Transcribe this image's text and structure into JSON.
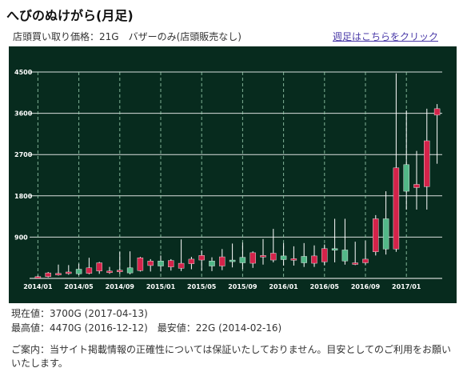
{
  "page": {
    "title": "へびのぬけがら(月足)",
    "shop_price": "店頭買い取り価格：21G　バザーのみ(店頭販売なし)",
    "weekly_link": "週足はこちらをクリック"
  },
  "stats": {
    "current": "現在値：3700G (2017-04-13)",
    "high_low": "最高値：4470G (2016-12-12)　最安値：22G (2014-02-16)"
  },
  "notice": "ご案内：当サイト掲載情報の正確性については保証いたしておりません。目安としてのご利用をお願いいたします。",
  "colors": {
    "background": "#072b1e",
    "up": "#d4234a",
    "down": "#52b888",
    "wick": "#ffffff",
    "grid": "#ffffff"
  },
  "chart_data": {
    "type": "candlestick",
    "title": "",
    "ylim": [
      0,
      4500
    ],
    "yticks": [
      900,
      1800,
      2700,
      3600,
      4500
    ],
    "ytick_labels": [
      "900",
      "1800",
      "2700",
      "3600",
      "4500"
    ],
    "xticks": [
      {
        "month": "2014/01",
        "label": "2014/01"
      },
      {
        "month": "2014/05",
        "label": "2014/05"
      },
      {
        "month": "2014/09",
        "label": "2014/09"
      },
      {
        "month": "2015/01",
        "label": "2015/01"
      },
      {
        "month": "2015/05",
        "label": "2015/05"
      },
      {
        "month": "2015/09",
        "label": "2015/09"
      },
      {
        "month": "2016/01",
        "label": "2016/01"
      },
      {
        "month": "2016/05",
        "label": "2016/05"
      },
      {
        "month": "2016/09",
        "label": "2016/09"
      },
      {
        "month": "2017/01",
        "label": "2017/01"
      }
    ],
    "candles": [
      {
        "month": "2014/01",
        "open": 30,
        "close": 40,
        "high": 60,
        "low": 22
      },
      {
        "month": "2014/02",
        "open": 40,
        "close": 120,
        "high": 140,
        "low": 22
      },
      {
        "month": "2014/03",
        "open": 90,
        "close": 110,
        "high": 300,
        "low": 60
      },
      {
        "month": "2014/04",
        "open": 110,
        "close": 140,
        "high": 290,
        "low": 80
      },
      {
        "month": "2014/05",
        "open": 200,
        "close": 100,
        "high": 320,
        "low": 70
      },
      {
        "month": "2014/06",
        "open": 110,
        "close": 230,
        "high": 450,
        "low": 90
      },
      {
        "month": "2014/07",
        "open": 160,
        "close": 340,
        "high": 360,
        "low": 100
      },
      {
        "month": "2014/08",
        "open": 150,
        "close": 160,
        "high": 250,
        "low": 100
      },
      {
        "month": "2014/09",
        "open": 160,
        "close": 180,
        "high": 580,
        "low": 100
      },
      {
        "month": "2014/10",
        "open": 230,
        "close": 120,
        "high": 590,
        "low": 90
      },
      {
        "month": "2014/11",
        "open": 170,
        "close": 450,
        "high": 470,
        "low": 150
      },
      {
        "month": "2014/12",
        "open": 280,
        "close": 380,
        "high": 420,
        "low": 150
      },
      {
        "month": "2015/01",
        "open": 380,
        "close": 270,
        "high": 500,
        "low": 150
      },
      {
        "month": "2015/02",
        "open": 250,
        "close": 390,
        "high": 420,
        "low": 170
      },
      {
        "month": "2015/03",
        "open": 220,
        "close": 330,
        "high": 850,
        "low": 160
      },
      {
        "month": "2015/04",
        "open": 320,
        "close": 420,
        "high": 470,
        "low": 200
      },
      {
        "month": "2015/05",
        "open": 400,
        "close": 500,
        "high": 610,
        "low": 170
      },
      {
        "month": "2015/06",
        "open": 380,
        "close": 270,
        "high": 460,
        "low": 160
      },
      {
        "month": "2015/07",
        "open": 270,
        "close": 470,
        "high": 640,
        "low": 180
      },
      {
        "month": "2015/08",
        "open": 400,
        "close": 390,
        "high": 760,
        "low": 240
      },
      {
        "month": "2015/09",
        "open": 460,
        "close": 340,
        "high": 780,
        "low": 200
      },
      {
        "month": "2015/10",
        "open": 330,
        "close": 560,
        "high": 590,
        "low": 230
      },
      {
        "month": "2015/11",
        "open": 480,
        "close": 500,
        "high": 860,
        "low": 300
      },
      {
        "month": "2015/12",
        "open": 400,
        "close": 550,
        "high": 1080,
        "low": 350
      },
      {
        "month": "2016/01",
        "open": 490,
        "close": 410,
        "high": 770,
        "low": 280
      },
      {
        "month": "2016/02",
        "open": 420,
        "close": 430,
        "high": 700,
        "low": 280
      },
      {
        "month": "2016/03",
        "open": 480,
        "close": 340,
        "high": 770,
        "low": 250
      },
      {
        "month": "2016/04",
        "open": 330,
        "close": 490,
        "high": 720,
        "low": 250
      },
      {
        "month": "2016/05",
        "open": 360,
        "close": 650,
        "high": 740,
        "low": 290
      },
      {
        "month": "2016/06",
        "open": 650,
        "close": 620,
        "high": 1300,
        "low": 350
      },
      {
        "month": "2016/07",
        "open": 620,
        "close": 380,
        "high": 1300,
        "low": 300
      },
      {
        "month": "2016/08",
        "open": 320,
        "close": 340,
        "high": 800,
        "low": 290
      },
      {
        "month": "2016/09",
        "open": 340,
        "close": 420,
        "high": 820,
        "low": 300
      },
      {
        "month": "2016/10",
        "open": 580,
        "close": 1300,
        "high": 1380,
        "low": 500
      },
      {
        "month": "2016/11",
        "open": 1300,
        "close": 640,
        "high": 1900,
        "low": 520
      },
      {
        "month": "2016/12",
        "open": 640,
        "close": 2410,
        "high": 4470,
        "low": 580
      },
      {
        "month": "2017/01",
        "open": 2480,
        "close": 1900,
        "high": 3660,
        "low": 1500
      },
      {
        "month": "2017/02",
        "open": 1980,
        "close": 2050,
        "high": 2780,
        "low": 1500
      },
      {
        "month": "2017/03",
        "open": 2000,
        "close": 3000,
        "high": 3700,
        "low": 1500
      },
      {
        "month": "2017/04",
        "open": 3560,
        "close": 3700,
        "high": 3800,
        "low": 2500
      }
    ]
  }
}
